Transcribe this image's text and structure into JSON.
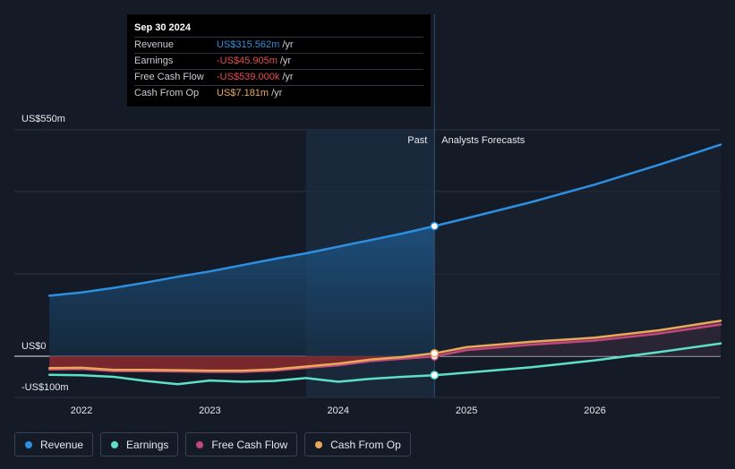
{
  "tooltip": {
    "date": "Sep 30 2024",
    "rows": [
      {
        "label": "Revenue",
        "value": "US$315.562m",
        "unit": "/yr",
        "color": "#2d8fe0"
      },
      {
        "label": "Earnings",
        "value": "-US$45.905m",
        "unit": "/yr",
        "color": "#e84e4e"
      },
      {
        "label": "Free Cash Flow",
        "value": "-US$539.000k",
        "unit": "/yr",
        "color": "#e84e4e"
      },
      {
        "label": "Cash From Op",
        "value": "US$7.181m",
        "unit": "/yr",
        "color": "#e8a95a"
      }
    ]
  },
  "chart_data": {
    "type": "line",
    "y_axis_labels": [
      "US$550m",
      "US$0",
      "-US$100m"
    ],
    "ylim": [
      -100,
      550
    ],
    "xlim": [
      2021.7,
      2026.98
    ],
    "x_ticks": [
      {
        "value": 2022,
        "label": "2022"
      },
      {
        "value": 2023,
        "label": "2023"
      },
      {
        "value": 2024,
        "label": "2024"
      },
      {
        "value": 2025,
        "label": "2025"
      },
      {
        "value": 2026,
        "label": "2026"
      }
    ],
    "gridlines": [
      550,
      400,
      200,
      0
    ],
    "past_label": "Past",
    "forecast_label": "Analysts Forecasts",
    "past_end": 2024.75,
    "highlight_start": 2023.75,
    "series": [
      {
        "name": "Revenue",
        "color": "#2d8fe0",
        "points": [
          [
            2021.75,
            147
          ],
          [
            2022.0,
            155
          ],
          [
            2022.25,
            166
          ],
          [
            2022.5,
            179
          ],
          [
            2022.75,
            193
          ],
          [
            2023.0,
            206
          ],
          [
            2023.25,
            221
          ],
          [
            2023.5,
            236
          ],
          [
            2023.75,
            250
          ],
          [
            2024.0,
            266
          ],
          [
            2024.25,
            282
          ],
          [
            2024.5,
            298
          ],
          [
            2024.75,
            316
          ]
        ],
        "forecast": [
          [
            2024.75,
            316
          ],
          [
            2025.0,
            335
          ],
          [
            2025.5,
            374
          ],
          [
            2026.0,
            417
          ],
          [
            2026.5,
            465
          ],
          [
            2026.98,
            514
          ]
        ]
      },
      {
        "name": "Earnings",
        "color": "#5ee0c8",
        "points": [
          [
            2021.75,
            -45
          ],
          [
            2022.0,
            -46
          ],
          [
            2022.25,
            -50
          ],
          [
            2022.5,
            -60
          ],
          [
            2022.75,
            -68
          ],
          [
            2023.0,
            -59
          ],
          [
            2023.25,
            -62
          ],
          [
            2023.5,
            -60
          ],
          [
            2023.75,
            -53
          ],
          [
            2024.0,
            -62
          ],
          [
            2024.25,
            -55
          ],
          [
            2024.5,
            -50
          ],
          [
            2024.75,
            -46
          ]
        ],
        "forecast": [
          [
            2024.75,
            -46
          ],
          [
            2025.0,
            -40
          ],
          [
            2025.5,
            -27
          ],
          [
            2026.0,
            -10
          ],
          [
            2026.5,
            10
          ],
          [
            2026.98,
            31
          ]
        ]
      },
      {
        "name": "Free Cash Flow",
        "color": "#c2477a",
        "points": [
          [
            2021.75,
            -32
          ],
          [
            2022.0,
            -31
          ],
          [
            2022.25,
            -36
          ],
          [
            2022.5,
            -36
          ],
          [
            2022.75,
            -37
          ],
          [
            2023.0,
            -38
          ],
          [
            2023.25,
            -38
          ],
          [
            2023.5,
            -35
          ],
          [
            2023.75,
            -28
          ],
          [
            2024.0,
            -22
          ],
          [
            2024.25,
            -12
          ],
          [
            2024.5,
            -6
          ],
          [
            2024.75,
            -0.5
          ]
        ],
        "forecast": [
          [
            2024.75,
            -0.5
          ],
          [
            2025.0,
            15
          ],
          [
            2025.5,
            28
          ],
          [
            2026.0,
            38
          ],
          [
            2026.5,
            55
          ],
          [
            2026.98,
            77
          ]
        ]
      },
      {
        "name": "Cash From Op",
        "color": "#e8a95a",
        "points": [
          [
            2021.75,
            -29
          ],
          [
            2022.0,
            -28
          ],
          [
            2022.25,
            -33
          ],
          [
            2022.5,
            -33
          ],
          [
            2022.75,
            -34
          ],
          [
            2023.0,
            -35
          ],
          [
            2023.25,
            -35
          ],
          [
            2023.5,
            -32
          ],
          [
            2023.75,
            -25
          ],
          [
            2024.0,
            -18
          ],
          [
            2024.25,
            -8
          ],
          [
            2024.5,
            -2
          ],
          [
            2024.75,
            7
          ]
        ],
        "forecast": [
          [
            2024.75,
            7
          ],
          [
            2025.0,
            22
          ],
          [
            2025.5,
            35
          ],
          [
            2026.0,
            45
          ],
          [
            2026.5,
            63
          ],
          [
            2026.98,
            86
          ]
        ]
      }
    ],
    "legend": [
      "Revenue",
      "Earnings",
      "Free Cash Flow",
      "Cash From Op"
    ]
  }
}
